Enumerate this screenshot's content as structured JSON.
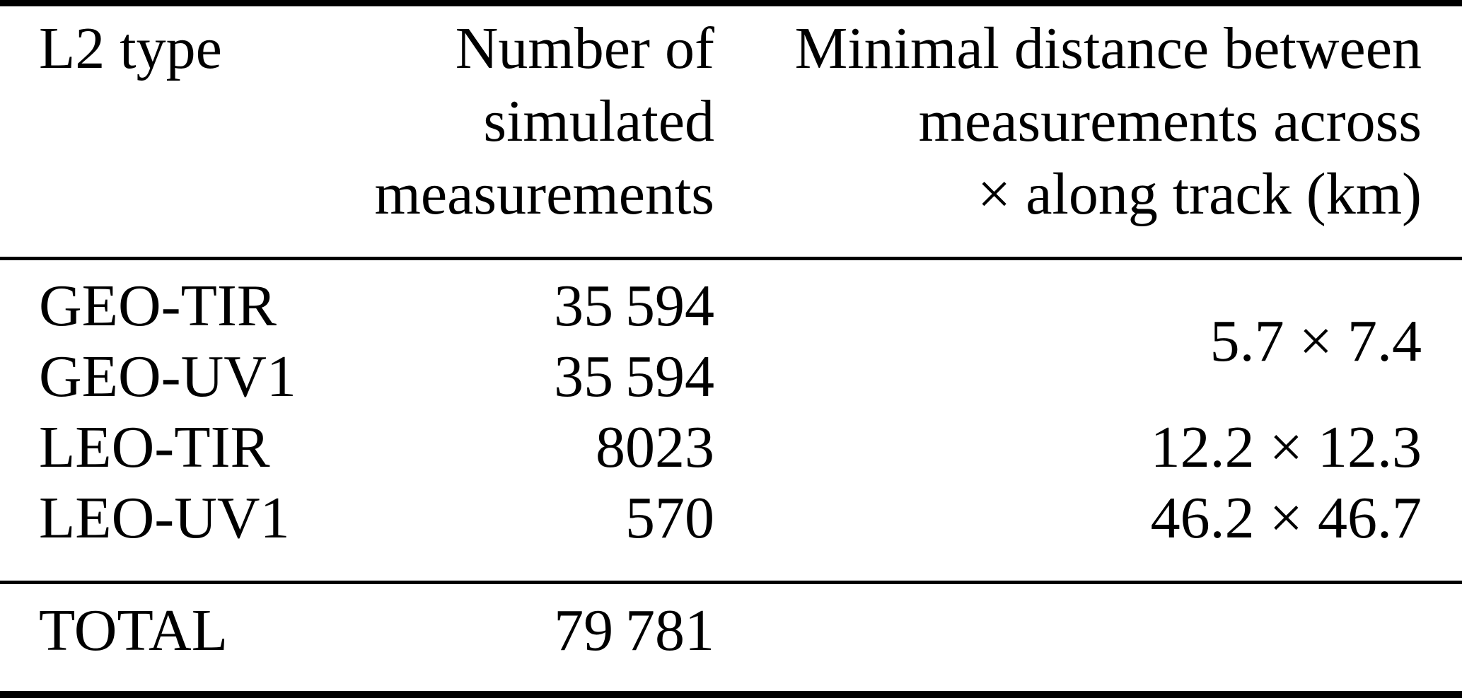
{
  "table": {
    "columns": {
      "col1": {
        "header": "L2 type"
      },
      "col2": {
        "header_lines": [
          "Number of",
          "simulated",
          "measurements"
        ]
      },
      "col3": {
        "header_lines": [
          "Minimal distance between",
          "measurements across",
          "× along track (km)"
        ]
      }
    },
    "rows": [
      {
        "type": "GEO-TIR",
        "count": "35 594"
      },
      {
        "type": "GEO-UV1",
        "count": "35 594"
      },
      {
        "type": "LEO-TIR",
        "count": "8023",
        "distance": "12.2 × 12.3"
      },
      {
        "type": "LEO-UV1",
        "count": "570",
        "distance": "46.2 × 46.7"
      }
    ],
    "merged_distance_geo": "5.7 × 7.4",
    "total": {
      "label": "TOTAL",
      "count": "79 781"
    }
  },
  "colors": {
    "text": "#000000",
    "background": "#ffffff",
    "rule": "#000000"
  }
}
